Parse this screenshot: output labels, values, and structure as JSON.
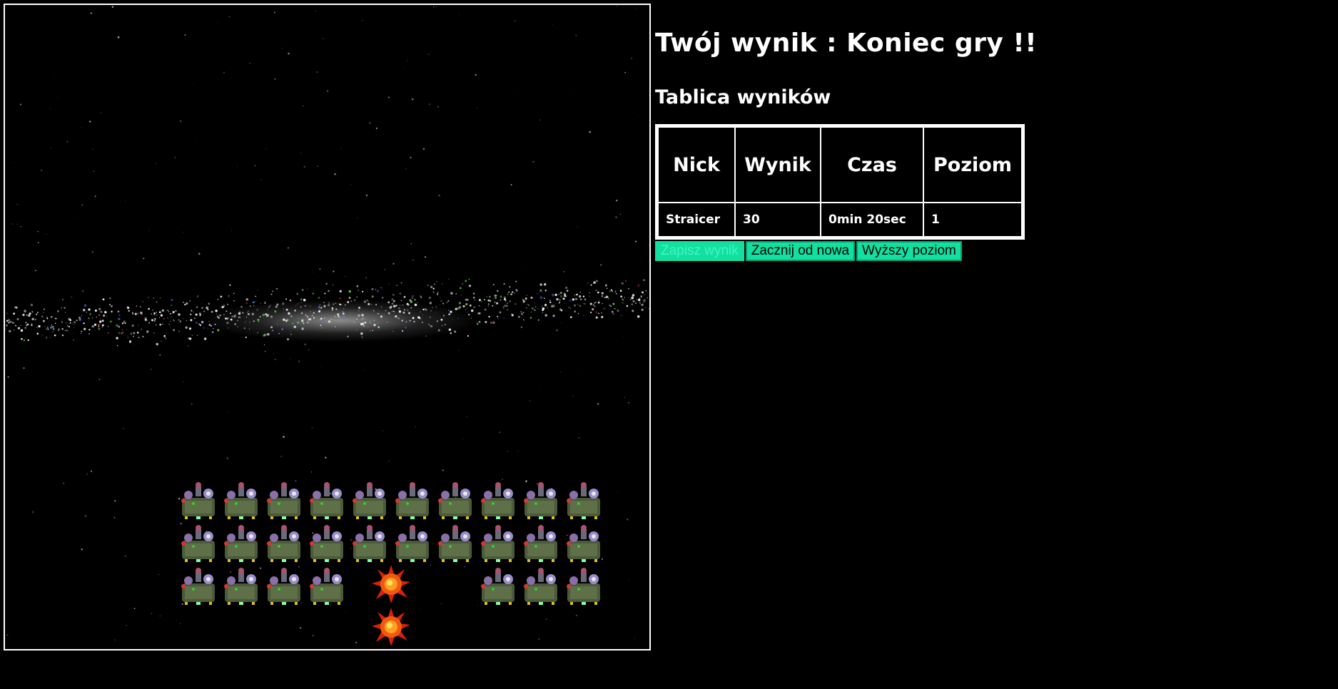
{
  "game": {
    "enemy_rows": [
      [
        1,
        1,
        1,
        1,
        1,
        1,
        1,
        1,
        1,
        1
      ],
      [
        1,
        1,
        1,
        1,
        1,
        1,
        1,
        1,
        1,
        1
      ],
      [
        1,
        1,
        1,
        1,
        0,
        0,
        0,
        1,
        1,
        1
      ]
    ],
    "explosions": [
      {
        "row": 2,
        "col": 5
      },
      {
        "row": 3,
        "col": 5
      }
    ],
    "colors": {
      "background": "#000000",
      "border": "#ffffff",
      "galaxy_accent": "#55dd33"
    }
  },
  "result": {
    "title": "Twój wynik : Koniec gry !!"
  },
  "scoreboard": {
    "title": "Tablica wyników",
    "headers": [
      "Nick",
      "Wynik",
      "Czas",
      "Poziom"
    ],
    "rows": [
      [
        "Straicer",
        "30",
        "0min 20sec",
        "1"
      ]
    ]
  },
  "buttons": {
    "save": "Zapisz wynik",
    "restart": "Zacznij od nowa",
    "next_level": "Wyższy poziom",
    "accent": "#12e0a0"
  }
}
